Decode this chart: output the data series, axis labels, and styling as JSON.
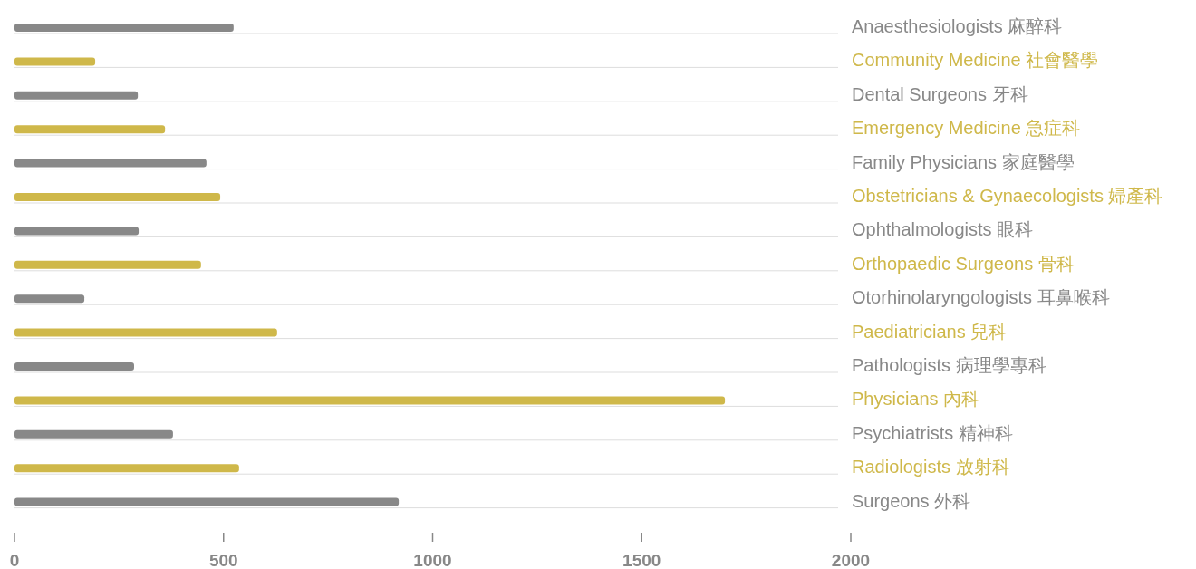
{
  "chart_data": {
    "type": "bar",
    "orientation": "horizontal",
    "categories": [
      "Anaesthesiologists 麻醉科",
      "Community Medicine 社會醫學",
      "Dental Surgeons 牙科",
      "Emergency Medicine 急症科",
      "Family Physicians 家庭醫學",
      "Obstetricians & Gynaecologists 婦產科",
      "Ophthalmologists 眼科",
      "Orthopaedic Surgeons 骨科",
      "Otorhinolaryngologists 耳鼻喉科",
      "Paediatricians 兒科",
      "Pathologists 病理學專科",
      "Physicians 內科",
      "Psychiatrists 精神科",
      "Radiologists 放射科",
      "Surgeons 外科"
    ],
    "values": [
      524,
      193,
      295,
      360,
      459,
      492,
      297,
      446,
      167,
      628,
      286,
      1699,
      379,
      537,
      919
    ],
    "colors": [
      "#888888",
      "#cfb84a",
      "#888888",
      "#cfb84a",
      "#888888",
      "#cfb84a",
      "#888888",
      "#cfb84a",
      "#888888",
      "#cfb84a",
      "#888888",
      "#cfb84a",
      "#888888",
      "#cfb84a",
      "#888888"
    ],
    "xlim": [
      0,
      2000
    ],
    "xticks": [
      0,
      500,
      1000,
      1500,
      2000
    ],
    "grid": "y"
  }
}
